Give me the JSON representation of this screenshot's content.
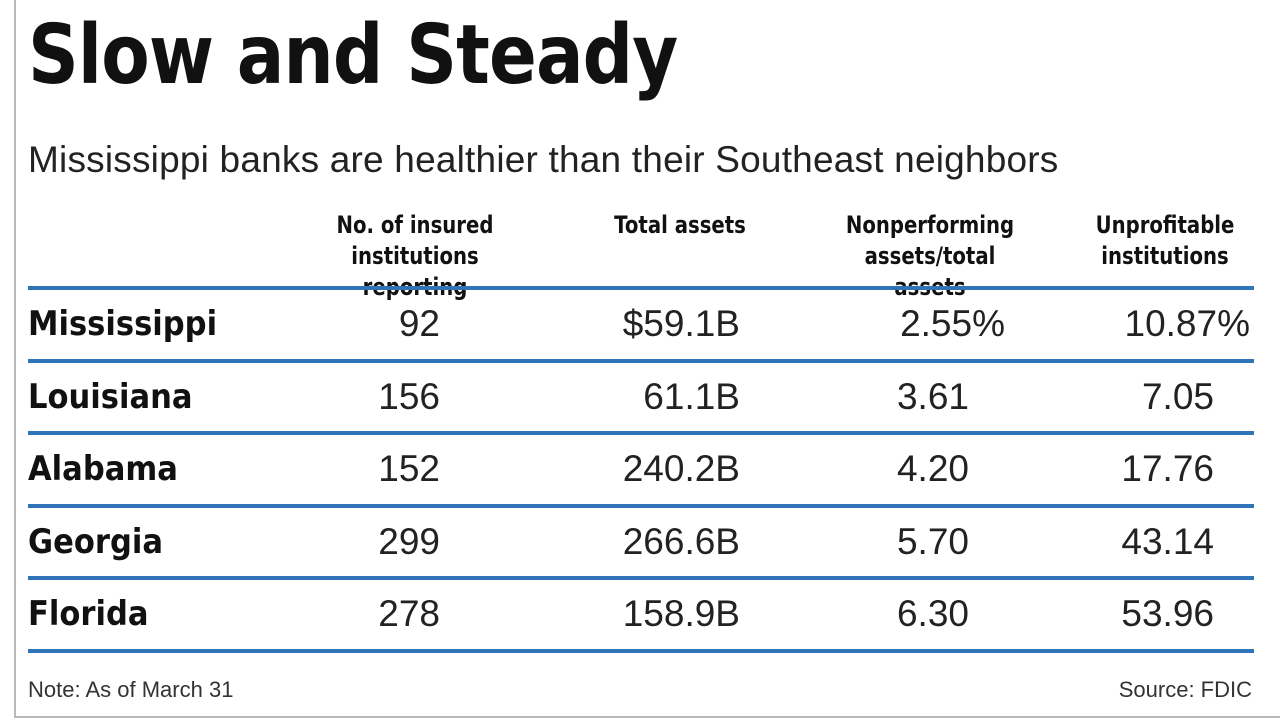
{
  "chart_data": {
    "type": "table",
    "title": "Slow and Steady",
    "subtitle": "Mississippi banks are healthier than their Southeast neighbors",
    "columns": [
      "No. of insured\ninstitutions reporting",
      "Total  assets",
      "Nonperforming\nassets/total assets",
      "Unprofitable\ninstitutions"
    ],
    "rows": [
      {
        "state": "Mississippi",
        "institutions": "92",
        "total_assets": "$59.1B",
        "nonperforming": "2.55%",
        "unprofitable": "10.87%"
      },
      {
        "state": "Louisiana",
        "institutions": "156",
        "total_assets": "61.1B",
        "nonperforming": "3.61",
        "unprofitable": "7.05"
      },
      {
        "state": "Alabama",
        "institutions": "152",
        "total_assets": "240.2B",
        "nonperforming": "4.20",
        "unprofitable": "17.76"
      },
      {
        "state": "Georgia",
        "institutions": "299",
        "total_assets": "266.6B",
        "nonperforming": "5.70",
        "unprofitable": "43.14"
      },
      {
        "state": "Florida",
        "institutions": "278",
        "total_assets": "158.9B",
        "nonperforming": "6.30",
        "unprofitable": "53.96"
      }
    ],
    "note": "Note: As of March 31",
    "source": "Source: FDIC"
  },
  "colors": {
    "rule": "#2f74b8"
  }
}
